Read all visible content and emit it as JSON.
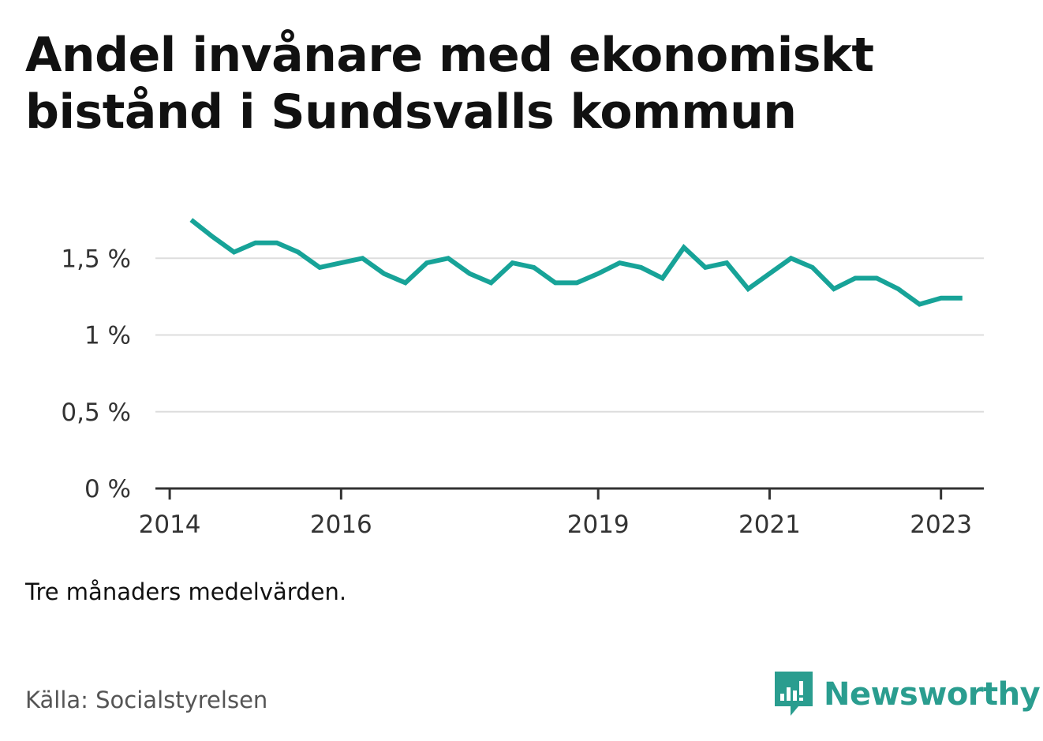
{
  "title": "Andel invånare med ekonomiskt bistånd i Sundsvalls kommun",
  "note": "Tre månaders medelvärden.",
  "source": "Källa: Socialstyrelsen",
  "brand": {
    "name": "Newsworthy",
    "icon": "bar-chart-speech-bubble-icon",
    "color": "#2a9d8f"
  },
  "chart_data": {
    "type": "line",
    "title": "Andel invånare med ekonomiskt bistånd i Sundsvalls kommun",
    "xlabel": "",
    "ylabel": "",
    "ylim": [
      0,
      2
    ],
    "xlim": [
      "2013-11",
      "2023-07"
    ],
    "y_ticks": [
      {
        "value": 0,
        "label": "0 %"
      },
      {
        "value": 0.5,
        "label": "0,5 %"
      },
      {
        "value": 1,
        "label": "1 %"
      },
      {
        "value": 1.5,
        "label": "1,5 %"
      }
    ],
    "x_ticks": [
      {
        "date": "2014-01",
        "label": "2014"
      },
      {
        "date": "2016-01",
        "label": "2016"
      },
      {
        "date": "2019-01",
        "label": "2019"
      },
      {
        "date": "2021-01",
        "label": "2021"
      },
      {
        "date": "2023-01",
        "label": "2023"
      }
    ],
    "grid": true,
    "line_color": "#17a398",
    "series": [
      {
        "name": "",
        "x": [
          "2014-04",
          "2014-07",
          "2014-10",
          "2015-01",
          "2015-04",
          "2015-07",
          "2015-10",
          "2016-01",
          "2016-04",
          "2016-07",
          "2016-10",
          "2017-01",
          "2017-04",
          "2017-07",
          "2017-10",
          "2018-01",
          "2018-04",
          "2018-07",
          "2018-10",
          "2019-01",
          "2019-04",
          "2019-07",
          "2019-10",
          "2020-01",
          "2020-04",
          "2020-07",
          "2020-10",
          "2021-01",
          "2021-04",
          "2021-07",
          "2021-10",
          "2022-01",
          "2022-04",
          "2022-07",
          "2022-10",
          "2023-01",
          "2023-04"
        ],
        "y": [
          1.75,
          1.64,
          1.54,
          1.6,
          1.6,
          1.54,
          1.44,
          1.47,
          1.5,
          1.4,
          1.34,
          1.47,
          1.5,
          1.4,
          1.34,
          1.47,
          1.44,
          1.34,
          1.34,
          1.4,
          1.47,
          1.44,
          1.37,
          1.57,
          1.44,
          1.47,
          1.3,
          1.4,
          1.5,
          1.44,
          1.3,
          1.37,
          1.37,
          1.3,
          1.2,
          1.24,
          1.24
        ]
      }
    ]
  }
}
